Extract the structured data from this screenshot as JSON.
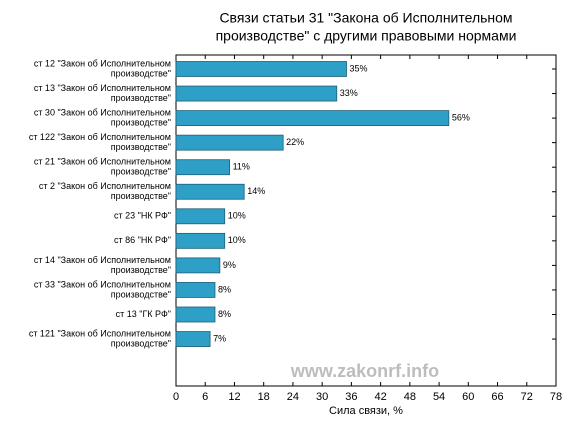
{
  "chart_data": {
    "type": "bar",
    "orientation": "horizontal",
    "title": [
      "Связи статьи 31 \"Закона об Исполнительном",
      "производстве\" с другими правовыми нормами"
    ],
    "xlabel": "Сила связи, %",
    "annotation": "www.zakonrf.info",
    "categories": [
      [
        "ст 12 \"Закон об Исполнительном",
        "производстве\""
      ],
      [
        "ст 13 \"Закон об Исполнительном",
        "производстве\""
      ],
      [
        "ст 30 \"Закон об Исполнительном",
        "производстве\""
      ],
      [
        "ст 122 \"Закон об Исполнительном",
        "производстве\""
      ],
      [
        "ст 21 \"Закон об Исполнительном",
        "производстве\""
      ],
      [
        "ст 2 \"Закон об Исполнительном",
        "производстве\""
      ],
      [
        "ст 23 \"НК РФ\""
      ],
      [
        "ст 86 \"НК РФ\""
      ],
      [
        "ст 14 \"Закон об Исполнительном",
        "производстве\""
      ],
      [
        "ст 33 \"Закон об Исполнительном",
        "производстве\""
      ],
      [
        "ст 13 \"ГК РФ\""
      ],
      [
        "ст 121 \"Закон об Исполнительном",
        "производстве\""
      ]
    ],
    "values": [
      35,
      33,
      56,
      22,
      11,
      14,
      10,
      10,
      9,
      8,
      8,
      7
    ],
    "value_labels": [
      "35%",
      "33%",
      "56%",
      "22%",
      "11%",
      "14%",
      "10%",
      "10%",
      "9%",
      "8%",
      "8%",
      "7%"
    ],
    "color": "#2e9fc6",
    "xlim": [
      0,
      78
    ],
    "xticks": [
      0,
      6,
      12,
      18,
      24,
      30,
      36,
      42,
      48,
      54,
      60,
      66,
      72,
      78
    ]
  }
}
